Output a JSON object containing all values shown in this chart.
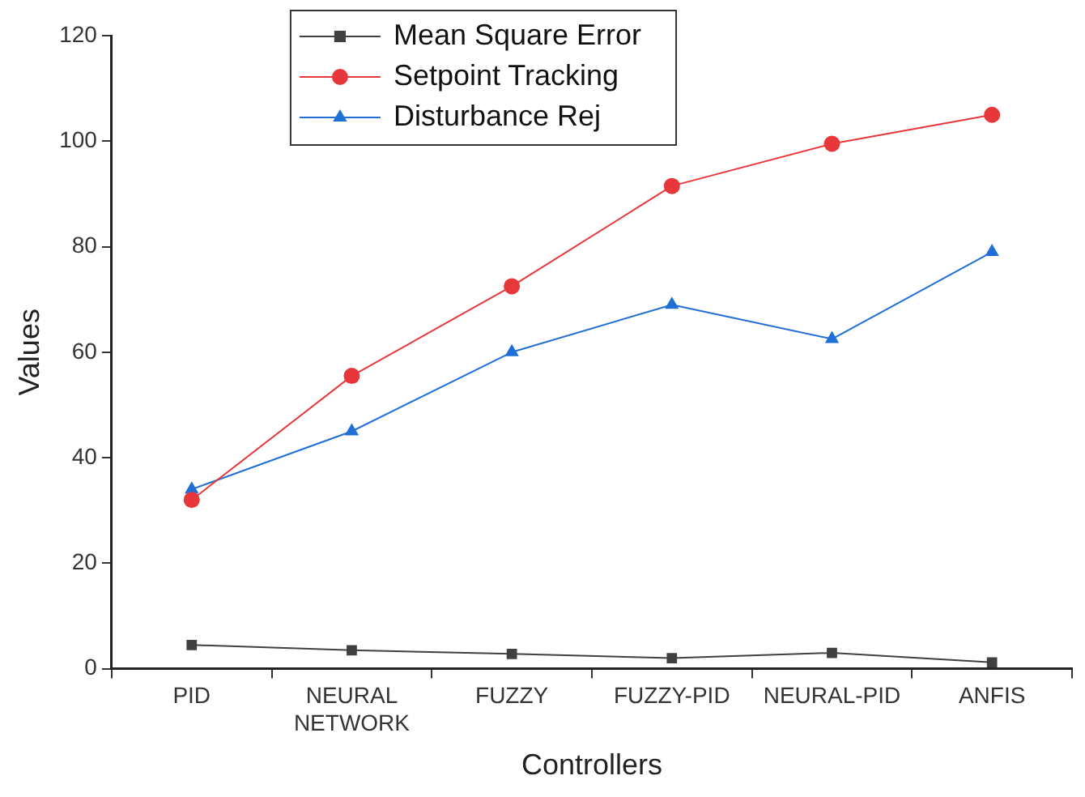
{
  "chart_data": {
    "type": "line",
    "xlabel": "Controllers",
    "ylabel": "Values",
    "categories": [
      "PID",
      "NEURAL NETWORK",
      "FUZZY",
      "FUZZY-PID",
      "NEURAL-PID",
      "ANFIS"
    ],
    "series": [
      {
        "name": "Mean Square Error",
        "color": "#404040",
        "marker": "square",
        "values": [
          4.5,
          3.5,
          2.8,
          2,
          3,
          1.2
        ]
      },
      {
        "name": "Setpoint Tracking",
        "color": "#e8373a",
        "marker": "circle",
        "values": [
          32,
          55.5,
          72.5,
          91.5,
          99.5,
          105
        ]
      },
      {
        "name": "Disturbance Rej",
        "color": "#1f6fd6",
        "marker": "triangle",
        "values": [
          34,
          45,
          60,
          69,
          62.5,
          79
        ]
      }
    ],
    "ylim": [
      0,
      120
    ],
    "yticks": [
      0,
      20,
      40,
      60,
      80,
      100,
      120
    ],
    "grid": false,
    "legend": "top",
    "line_style": "solid"
  }
}
